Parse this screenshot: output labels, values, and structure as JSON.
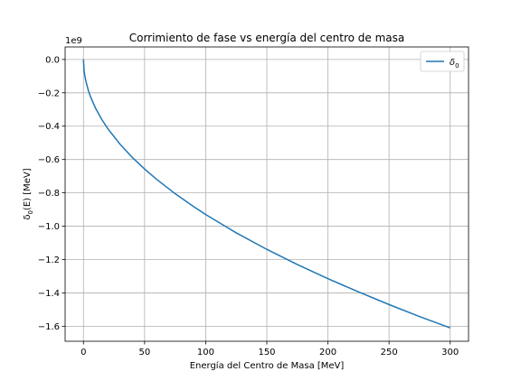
{
  "chart_data": {
    "type": "line",
    "title": "Corrimiento de fase vs energía del centro de masa",
    "xlabel": "Energía del Centro de Masa [MeV]",
    "ylabel_main": "δ",
    "ylabel_sub": "0",
    "ylabel_rest": "(E) [MeV]",
    "y_scale_label": "1e9",
    "xlim": [
      -15,
      315
    ],
    "ylim": [
      -1.69,
      0.075
    ],
    "x_ticks": [
      0,
      50,
      100,
      150,
      200,
      250,
      300
    ],
    "x_tick_labels": [
      "0",
      "50",
      "100",
      "150",
      "200",
      "250",
      "300"
    ],
    "y_ticks": [
      0.0,
      -0.2,
      -0.4,
      -0.6,
      -0.8,
      -1.0,
      -1.2,
      -1.4,
      -1.6
    ],
    "y_tick_labels": [
      "0.0",
      "−0.2",
      "−0.4",
      "−0.6",
      "−0.8",
      "−1.0",
      "−1.2",
      "−1.4",
      "−1.6"
    ],
    "grid": true,
    "legend_position": "top-right",
    "series": [
      {
        "name_main": "δ",
        "name_sub": "0",
        "color": "#1f77b4",
        "x": [
          0,
          0.5,
          1,
          2,
          4,
          6,
          10,
          15,
          20,
          30,
          40,
          50,
          60,
          75,
          90,
          100,
          125,
          150,
          175,
          200,
          225,
          250,
          275,
          300
        ],
        "y": [
          0,
          -0.067,
          -0.093,
          -0.131,
          -0.186,
          -0.228,
          -0.294,
          -0.36,
          -0.416,
          -0.509,
          -0.588,
          -0.657,
          -0.72,
          -0.805,
          -0.882,
          -0.93,
          -1.04,
          -1.139,
          -1.23,
          -1.315,
          -1.394,
          -1.47,
          -1.542,
          -1.61
        ]
      }
    ]
  }
}
